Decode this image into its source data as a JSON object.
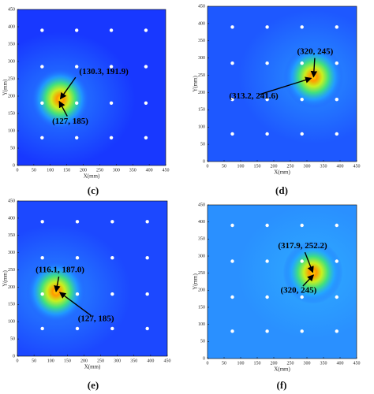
{
  "chart_data": [
    {
      "type": "heatmap",
      "caption": "(c)",
      "xlabel": "X(mm)",
      "ylabel": "Y(mm)",
      "xlim": [
        0,
        450
      ],
      "ylim": [
        0,
        450
      ],
      "xticks": [
        0,
        50,
        100,
        150,
        200,
        250,
        300,
        350,
        400,
        450
      ],
      "yticks": [
        0,
        50,
        100,
        150,
        200,
        250,
        300,
        350,
        400,
        450
      ],
      "sensor_x": [
        75,
        180,
        285,
        390
      ],
      "sensor_y": [
        80,
        180,
        285,
        390
      ],
      "annotations": [
        {
          "label": "(130.3, 191.9)",
          "x": 130.3,
          "y": 191.9
        },
        {
          "label": "(127, 185)",
          "x": 127,
          "y": 185
        }
      ]
    },
    {
      "type": "heatmap",
      "caption": "(d)",
      "xlabel": "X(mm)",
      "ylabel": "Y(mm)",
      "xlim": [
        0,
        450
      ],
      "ylim": [
        0,
        450
      ],
      "xticks": [
        0,
        50,
        100,
        150,
        200,
        250,
        300,
        350,
        400,
        450
      ],
      "yticks": [
        0,
        50,
        100,
        150,
        200,
        250,
        300,
        350,
        400,
        450
      ],
      "sensor_x": [
        75,
        180,
        285,
        390
      ],
      "sensor_y": [
        80,
        180,
        285,
        390
      ],
      "annotations": [
        {
          "label": "(320, 245)",
          "x": 320,
          "y": 245
        },
        {
          "label": "(313.2, 241.6)",
          "x": 313.2,
          "y": 241.6
        }
      ]
    },
    {
      "type": "heatmap",
      "caption": "(e)",
      "xlabel": "X(mm)",
      "ylabel": "Y(mm)",
      "xlim": [
        0,
        450
      ],
      "ylim": [
        0,
        450
      ],
      "xticks": [
        0,
        50,
        100,
        150,
        200,
        250,
        300,
        350,
        400,
        450
      ],
      "yticks": [
        0,
        50,
        100,
        150,
        200,
        250,
        300,
        350,
        400,
        450
      ],
      "sensor_x": [
        75,
        180,
        285,
        390
      ],
      "sensor_y": [
        80,
        180,
        285,
        390
      ],
      "annotations": [
        {
          "label": "(116.1, 187.0)",
          "x": 116.1,
          "y": 187.0
        },
        {
          "label": "(127, 185)",
          "x": 127,
          "y": 185
        }
      ]
    },
    {
      "type": "heatmap",
      "caption": "(f)",
      "xlabel": "X(mm)",
      "ylabel": "Y(mm)",
      "xlim": [
        0,
        450
      ],
      "ylim": [
        0,
        450
      ],
      "xticks": [
        0,
        50,
        100,
        150,
        200,
        250,
        300,
        350,
        400,
        450
      ],
      "yticks": [
        0,
        50,
        100,
        150,
        200,
        250,
        300,
        350,
        400,
        450
      ],
      "sensor_x": [
        75,
        180,
        285,
        390
      ],
      "sensor_y": [
        80,
        180,
        285,
        390
      ],
      "annotations": [
        {
          "label": "(317.9, 252.2)",
          "x": 317.9,
          "y": 252.2
        },
        {
          "label": "(320, 245)",
          "x": 320,
          "y": 245
        }
      ]
    }
  ]
}
